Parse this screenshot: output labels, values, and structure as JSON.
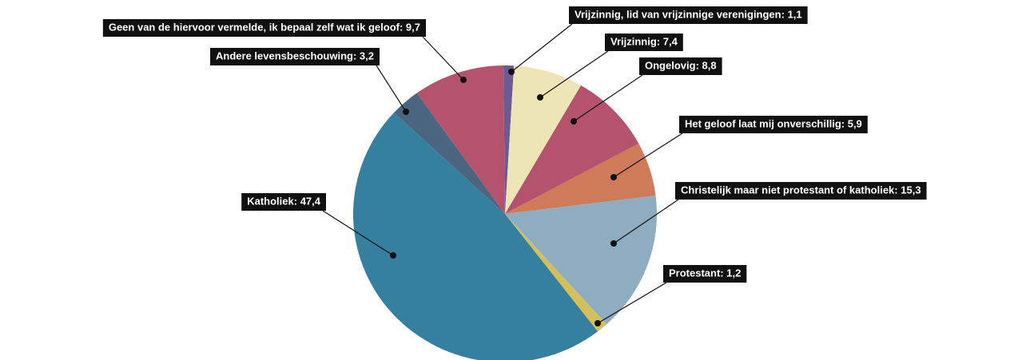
{
  "chart_data": {
    "type": "pie",
    "categories": [
      "Vrijzinnig, lid van vrijzinnige verenigingen",
      "Vrijzinnig",
      "Ongelovig",
      "Het geloof laat mij onverschillig",
      "Christelijk maar niet protestant of katholiek",
      "Protestant",
      "Katholiek",
      "Andere levensbeschouwing",
      "Geen van de hiervoor vermelde, ik bepaal zelf wat ik geloof"
    ],
    "values": [
      1.1,
      7.4,
      8.8,
      5.9,
      15.3,
      1.2,
      47.4,
      3.2,
      9.7
    ],
    "value_labels": [
      "1,1",
      "7,4",
      "8,8",
      "5,9",
      "15,3",
      "1,2",
      "47,4",
      "3,2",
      "9,7"
    ],
    "colors": [
      "#6b5b95",
      "#ede5b6",
      "#b5536e",
      "#cf7b58",
      "#8fadc0",
      "#d4c05a",
      "#35809f",
      "#4b6680",
      "#b5536e"
    ]
  }
}
